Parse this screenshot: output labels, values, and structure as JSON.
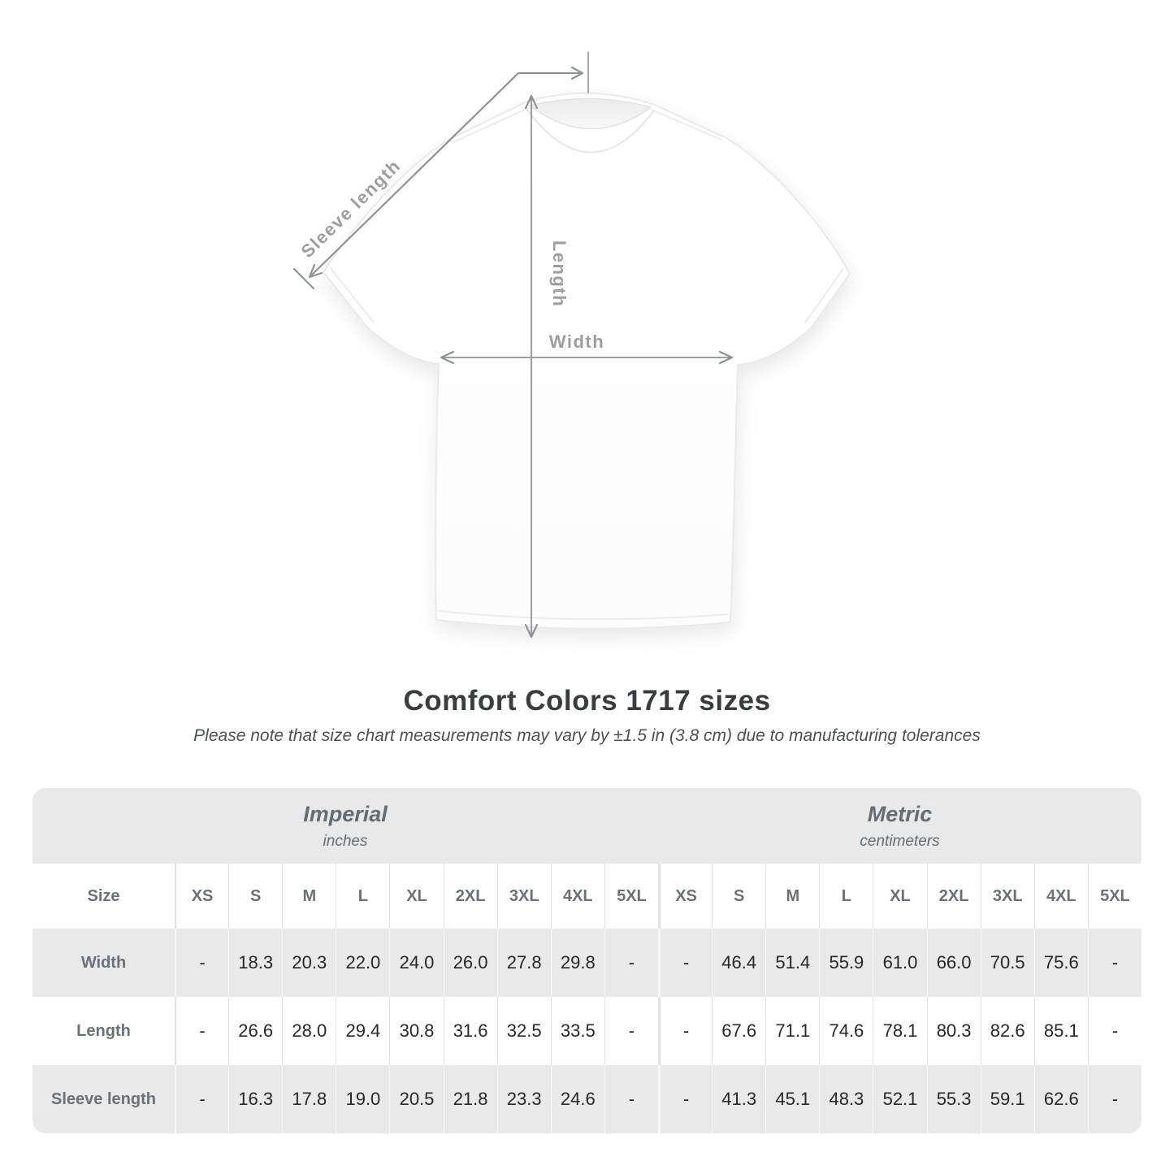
{
  "diagram": {
    "labels": {
      "sleeve_length": "Sleeve length",
      "length": "Length",
      "width": "Width"
    },
    "arrow_color": "#8f9397",
    "label_color": "#9c9ea1"
  },
  "title": "Comfort Colors 1717 sizes",
  "subtitle": "Please note that size chart measurements may vary by ±1.5 in (3.8 cm) due to manufacturing tolerances",
  "chart_data": {
    "type": "table",
    "sections": [
      {
        "label": "Imperial",
        "sublabel": "inches"
      },
      {
        "label": "Metric",
        "sublabel": "centimeters"
      }
    ],
    "size_header": "Size",
    "sizes": [
      "XS",
      "S",
      "M",
      "L",
      "XL",
      "2XL",
      "3XL",
      "4XL",
      "5XL"
    ],
    "rows": [
      {
        "label": "Width",
        "imperial": [
          "-",
          "18.3",
          "20.3",
          "22.0",
          "24.0",
          "26.0",
          "27.8",
          "29.8",
          "-"
        ],
        "metric": [
          "-",
          "46.4",
          "51.4",
          "55.9",
          "61.0",
          "66.0",
          "70.5",
          "75.6",
          "-"
        ]
      },
      {
        "label": "Length",
        "imperial": [
          "-",
          "26.6",
          "28.0",
          "29.4",
          "30.8",
          "31.6",
          "32.5",
          "33.5",
          "-"
        ],
        "metric": [
          "-",
          "67.6",
          "71.1",
          "74.6",
          "78.1",
          "80.3",
          "82.6",
          "85.1",
          "-"
        ]
      },
      {
        "label": "Sleeve length",
        "imperial": [
          "-",
          "16.3",
          "17.8",
          "19.0",
          "20.5",
          "21.8",
          "23.3",
          "24.6",
          "-"
        ],
        "metric": [
          "-",
          "41.3",
          "45.1",
          "48.3",
          "52.1",
          "55.3",
          "59.1",
          "62.6",
          "-"
        ]
      }
    ]
  },
  "colors": {
    "table_band": "#e9e9e9",
    "value_text": "#26282a",
    "header_text": "#6b7176",
    "title_text": "#3a3d40"
  }
}
